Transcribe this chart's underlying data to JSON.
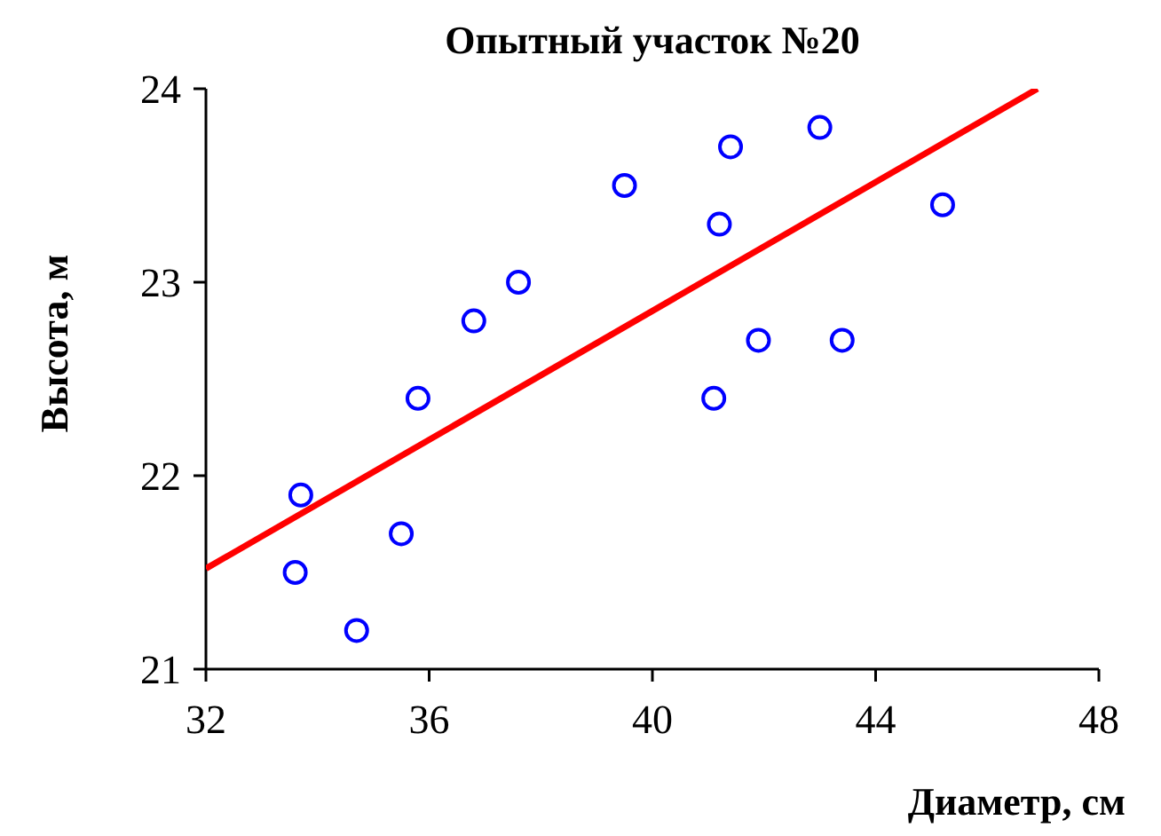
{
  "chart_data": {
    "type": "scatter",
    "title": "Опытный участок №20",
    "xlabel": "Диаметр, см",
    "ylabel": "Высота, м",
    "xlim": [
      32,
      48
    ],
    "xticks": [
      32,
      36,
      40,
      44,
      48
    ],
    "ylim": [
      21,
      24
    ],
    "yticks": [
      21,
      22,
      23,
      24
    ],
    "grid": false,
    "series": [
      {
        "color": "#0000ff",
        "marker": "circle",
        "x": [
          33.6,
          33.7,
          34.7,
          35.5,
          35.8,
          36.8,
          37.6,
          39.5,
          41.1,
          41.2,
          41.4,
          41.9,
          43.0,
          43.4,
          45.2
        ],
        "values": [
          21.5,
          21.9,
          21.2,
          21.7,
          22.4,
          22.8,
          23.0,
          23.5,
          22.4,
          23.3,
          23.7,
          22.7,
          23.8,
          22.7,
          23.4
        ]
      },
      {
        "type": "line",
        "color": "#ff0000",
        "x": [
          32,
          46.9
        ],
        "values": [
          21.52,
          24.0
        ]
      }
    ]
  }
}
